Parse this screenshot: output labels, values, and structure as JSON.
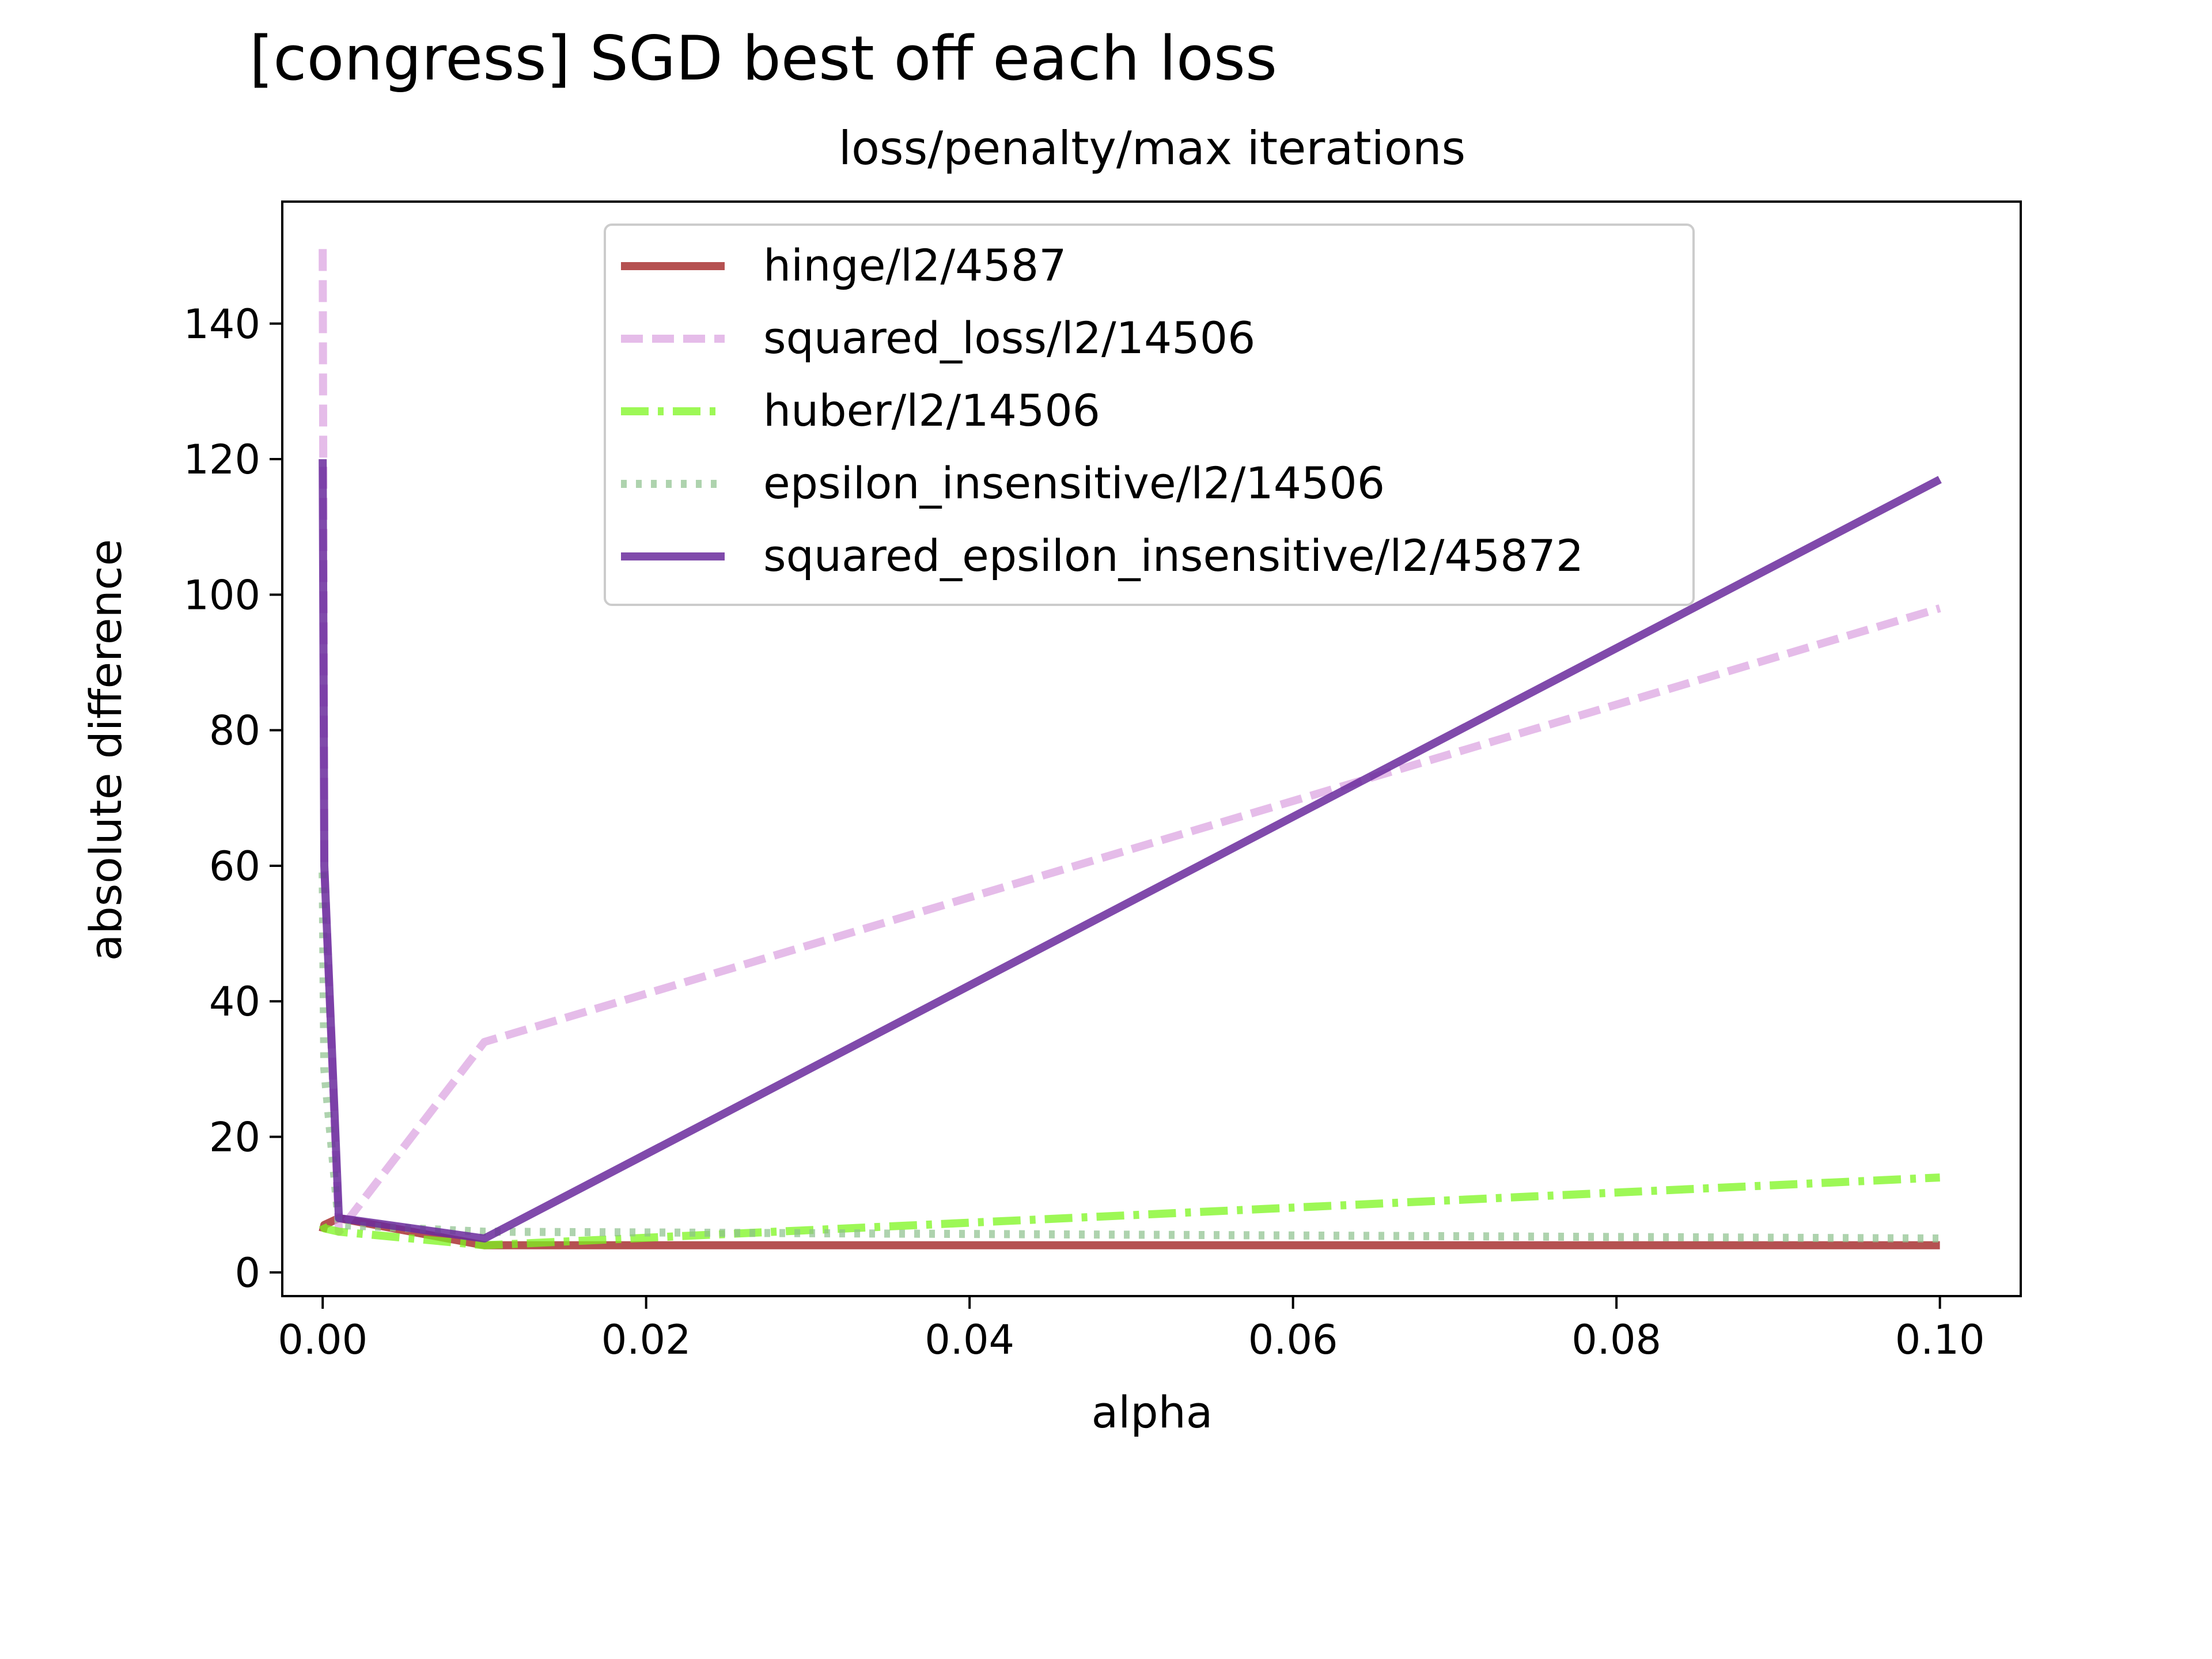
{
  "chart_data": {
    "type": "line",
    "title": "[congress] SGD best off each loss",
    "subtitle": "loss/penalty/max iterations",
    "xlabel": "alpha",
    "ylabel": "absolute difference",
    "xlim": [
      -0.0025,
      0.105
    ],
    "ylim": [
      -3.5,
      158
    ],
    "xticks": [
      0.0,
      0.02,
      0.04,
      0.06,
      0.08,
      0.1
    ],
    "xtick_labels": [
      "0.00",
      "0.02",
      "0.04",
      "0.06",
      "0.08",
      "0.10"
    ],
    "yticks": [
      0,
      20,
      40,
      60,
      80,
      100,
      120,
      140
    ],
    "ytick_labels": [
      "0",
      "20",
      "40",
      "60",
      "80",
      "100",
      "120",
      "140"
    ],
    "grid": false,
    "legend_position": "upper-center",
    "series": [
      {
        "name": "hinge/l2/4587",
        "color": "#a83232",
        "dash": "solid",
        "alpha": 0.85,
        "x": [
          0.0,
          0.0001,
          0.001,
          0.01,
          0.1
        ],
        "y": [
          6,
          7,
          8,
          4,
          4
        ]
      },
      {
        "name": "squared_loss/l2/14506",
        "color": "#da9fe0",
        "dash": "dashed",
        "alpha": 0.7,
        "x": [
          0.0,
          0.0001,
          0.001,
          0.01,
          0.1
        ],
        "y": [
          151,
          60,
          6,
          34,
          98
        ]
      },
      {
        "name": "huber/l2/14506",
        "color": "#7cf51e",
        "dash": "dashdot",
        "alpha": 0.75,
        "x": [
          0.0,
          0.0001,
          0.001,
          0.01,
          0.1
        ],
        "y": [
          7,
          6.5,
          6,
          4,
          14
        ]
      },
      {
        "name": "epsilon_insensitive/l2/14506",
        "color": "#8cc08c",
        "dash": "dotted",
        "alpha": 0.7,
        "x": [
          0.0,
          0.0001,
          0.001,
          0.01,
          0.1
        ],
        "y": [
          59,
          30,
          7,
          6,
          5
        ]
      },
      {
        "name": "squared_epsilon_insensitive/l2/45872",
        "color": "#6a2a9c",
        "dash": "solid",
        "alpha": 0.85,
        "x": [
          0.0,
          0.0001,
          0.001,
          0.01,
          0.1
        ],
        "y": [
          120,
          60,
          8,
          5,
          117
        ]
      }
    ]
  }
}
